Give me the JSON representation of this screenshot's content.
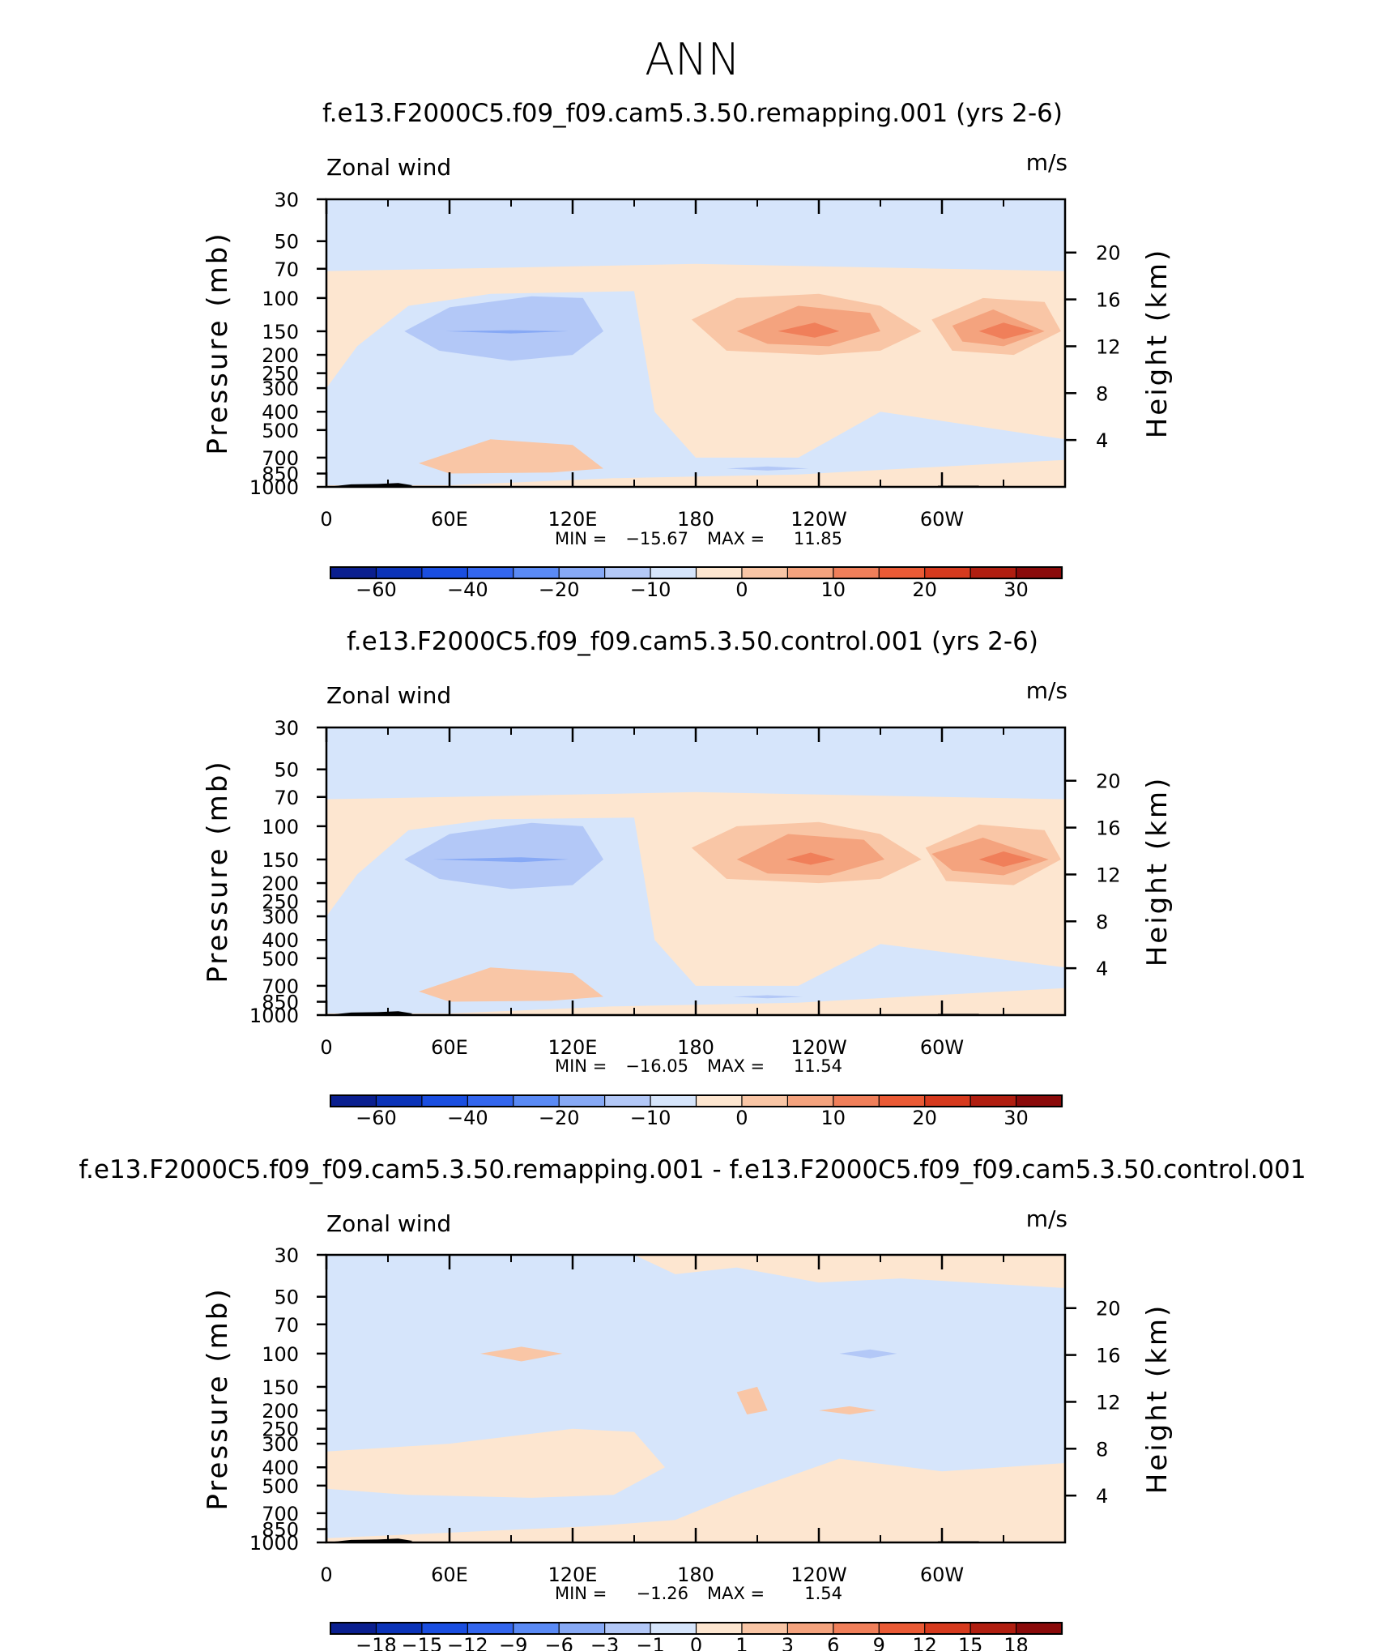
{
  "figure_title": "ANN",
  "chart_data": [
    {
      "type": "contour",
      "title": "f.e13.F2000C5.f09_f09.cam5.3.50.remapping.001 (yrs 2-6)",
      "left_string": "Zonal wind",
      "right_string": "m/s",
      "ylabel": "Pressure (mb)",
      "ylabel_right": "Height (km)",
      "x_ticks": [
        "0",
        "60E",
        "120E",
        "180",
        "120W",
        "60W"
      ],
      "y_ticks": [
        "30",
        "50",
        "70",
        "100",
        "150",
        "200",
        "250",
        "300",
        "400",
        "500",
        "700",
        "850",
        "1000"
      ],
      "height_ticks": [
        "20",
        "16",
        "12",
        "8",
        "4"
      ],
      "stats": {
        "min_label": "MIN =",
        "min": "−15.67",
        "max_label": "MAX =",
        "max": "11.85"
      },
      "colorbar": {
        "colors": [
          "#0a1f8f",
          "#0b33b8",
          "#1a4ee0",
          "#3366ee",
          "#5a8af5",
          "#87a9f5",
          "#b3c8f7",
          "#d6e5fb",
          "#fde6d0",
          "#f9c6a6",
          "#f4a37e",
          "#f07f5a",
          "#ea5a35",
          "#d63a1e",
          "#b01e10",
          "#8a0a0a"
        ],
        "labels": [
          "−60",
          "−40",
          "−20",
          "−10",
          "0",
          "10",
          "20",
          "30"
        ]
      }
    },
    {
      "type": "contour",
      "title": "f.e13.F2000C5.f09_f09.cam5.3.50.control.001 (yrs 2-6)",
      "left_string": "Zonal wind",
      "right_string": "m/s",
      "ylabel": "Pressure (mb)",
      "ylabel_right": "Height (km)",
      "x_ticks": [
        "0",
        "60E",
        "120E",
        "180",
        "120W",
        "60W"
      ],
      "y_ticks": [
        "30",
        "50",
        "70",
        "100",
        "150",
        "200",
        "250",
        "300",
        "400",
        "500",
        "700",
        "850",
        "1000"
      ],
      "height_ticks": [
        "20",
        "16",
        "12",
        "8",
        "4"
      ],
      "stats": {
        "min_label": "MIN =",
        "min": "−16.05",
        "max_label": "MAX =",
        "max": "11.54"
      },
      "colorbar": {
        "colors": [
          "#0a1f8f",
          "#0b33b8",
          "#1a4ee0",
          "#3366ee",
          "#5a8af5",
          "#87a9f5",
          "#b3c8f7",
          "#d6e5fb",
          "#fde6d0",
          "#f9c6a6",
          "#f4a37e",
          "#f07f5a",
          "#ea5a35",
          "#d63a1e",
          "#b01e10",
          "#8a0a0a"
        ],
        "labels": [
          "−60",
          "−40",
          "−20",
          "−10",
          "0",
          "10",
          "20",
          "30"
        ]
      }
    },
    {
      "type": "contour",
      "title": "f.e13.F2000C5.f09_f09.cam5.3.50.remapping.001 - f.e13.F2000C5.f09_f09.cam5.3.50.control.001",
      "left_string": "Zonal wind",
      "right_string": "m/s",
      "ylabel": "Pressure (mb)",
      "ylabel_right": "Height (km)",
      "x_ticks": [
        "0",
        "60E",
        "120E",
        "180",
        "120W",
        "60W"
      ],
      "y_ticks": [
        "30",
        "50",
        "70",
        "100",
        "150",
        "200",
        "250",
        "300",
        "400",
        "500",
        "700",
        "850",
        "1000"
      ],
      "height_ticks": [
        "20",
        "16",
        "12",
        "8",
        "4"
      ],
      "stats": {
        "min_label": "MIN =",
        "min": "−1.26",
        "max_label": "MAX =",
        "max": "1.54"
      },
      "colorbar": {
        "colors": [
          "#0a1f8f",
          "#0b33b8",
          "#1a4ee0",
          "#3366ee",
          "#5a8af5",
          "#87a9f5",
          "#b3c8f7",
          "#d6e5fb",
          "#fde6d0",
          "#f9c6a6",
          "#f4a37e",
          "#f07f5a",
          "#ea5a35",
          "#d63a1e",
          "#b01e10",
          "#8a0a0a"
        ],
        "labels": [
          "−18",
          "−15",
          "−12",
          "−9",
          "−6",
          "−3",
          "−1",
          "0",
          "1",
          "3",
          "6",
          "9",
          "12",
          "15",
          "18"
        ]
      }
    }
  ]
}
